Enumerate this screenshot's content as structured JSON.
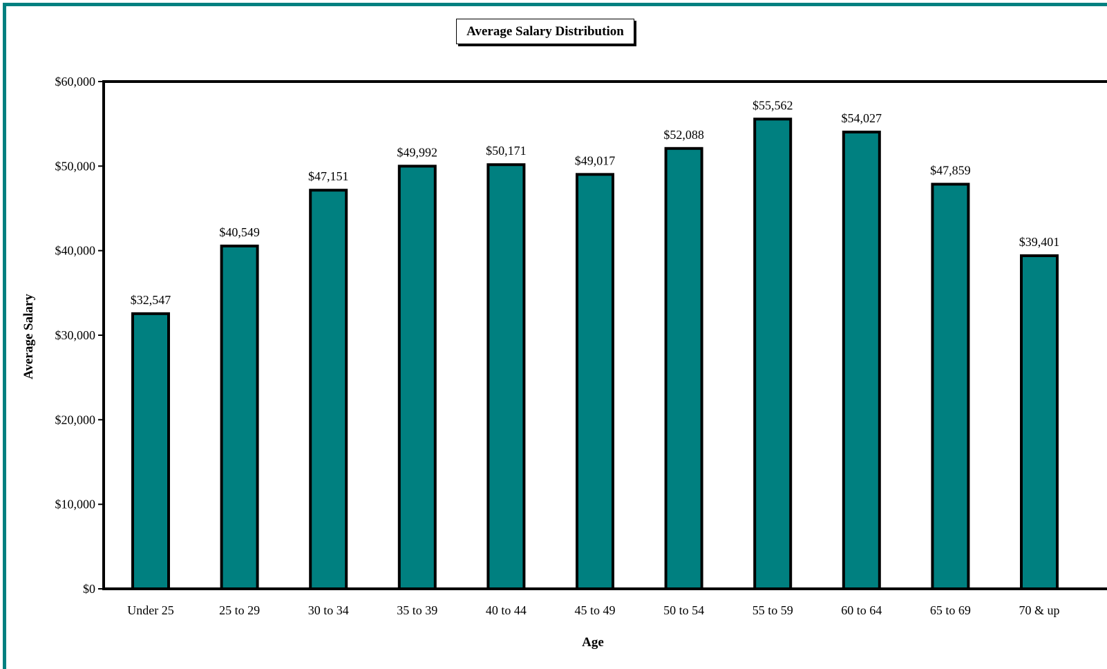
{
  "chart_data": {
    "type": "bar",
    "title": "Average Salary Distribution",
    "xlabel": "Age",
    "ylabel": "Average Salary",
    "categories": [
      "Under 25",
      "25 to 29",
      "30 to 34",
      "35 to 39",
      "40 to 44",
      "45 to 49",
      "50 to 54",
      "55 to 59",
      "60 to 64",
      "65 to 69",
      "70 & up"
    ],
    "values": [
      32547,
      40549,
      47151,
      49992,
      50171,
      49017,
      52088,
      55562,
      54027,
      47859,
      39401
    ],
    "data_labels": [
      "$32,547",
      "$40,549",
      "$47,151",
      "$49,992",
      "$50,171",
      "$49,017",
      "$52,088",
      "$55,562",
      "$54,027",
      "$47,859",
      "$39,401"
    ],
    "ylim": [
      0,
      60000
    ],
    "yticks": [
      0,
      10000,
      20000,
      30000,
      40000,
      50000,
      60000
    ],
    "ytick_labels": [
      "$0",
      "$10,000",
      "$20,000",
      "$30,000",
      "$40,000",
      "$50,000",
      "$60,000"
    ],
    "grid": false,
    "legend": "none",
    "colors": {
      "bar": "#008080",
      "frame": "#008080",
      "axis": "#000000"
    }
  }
}
